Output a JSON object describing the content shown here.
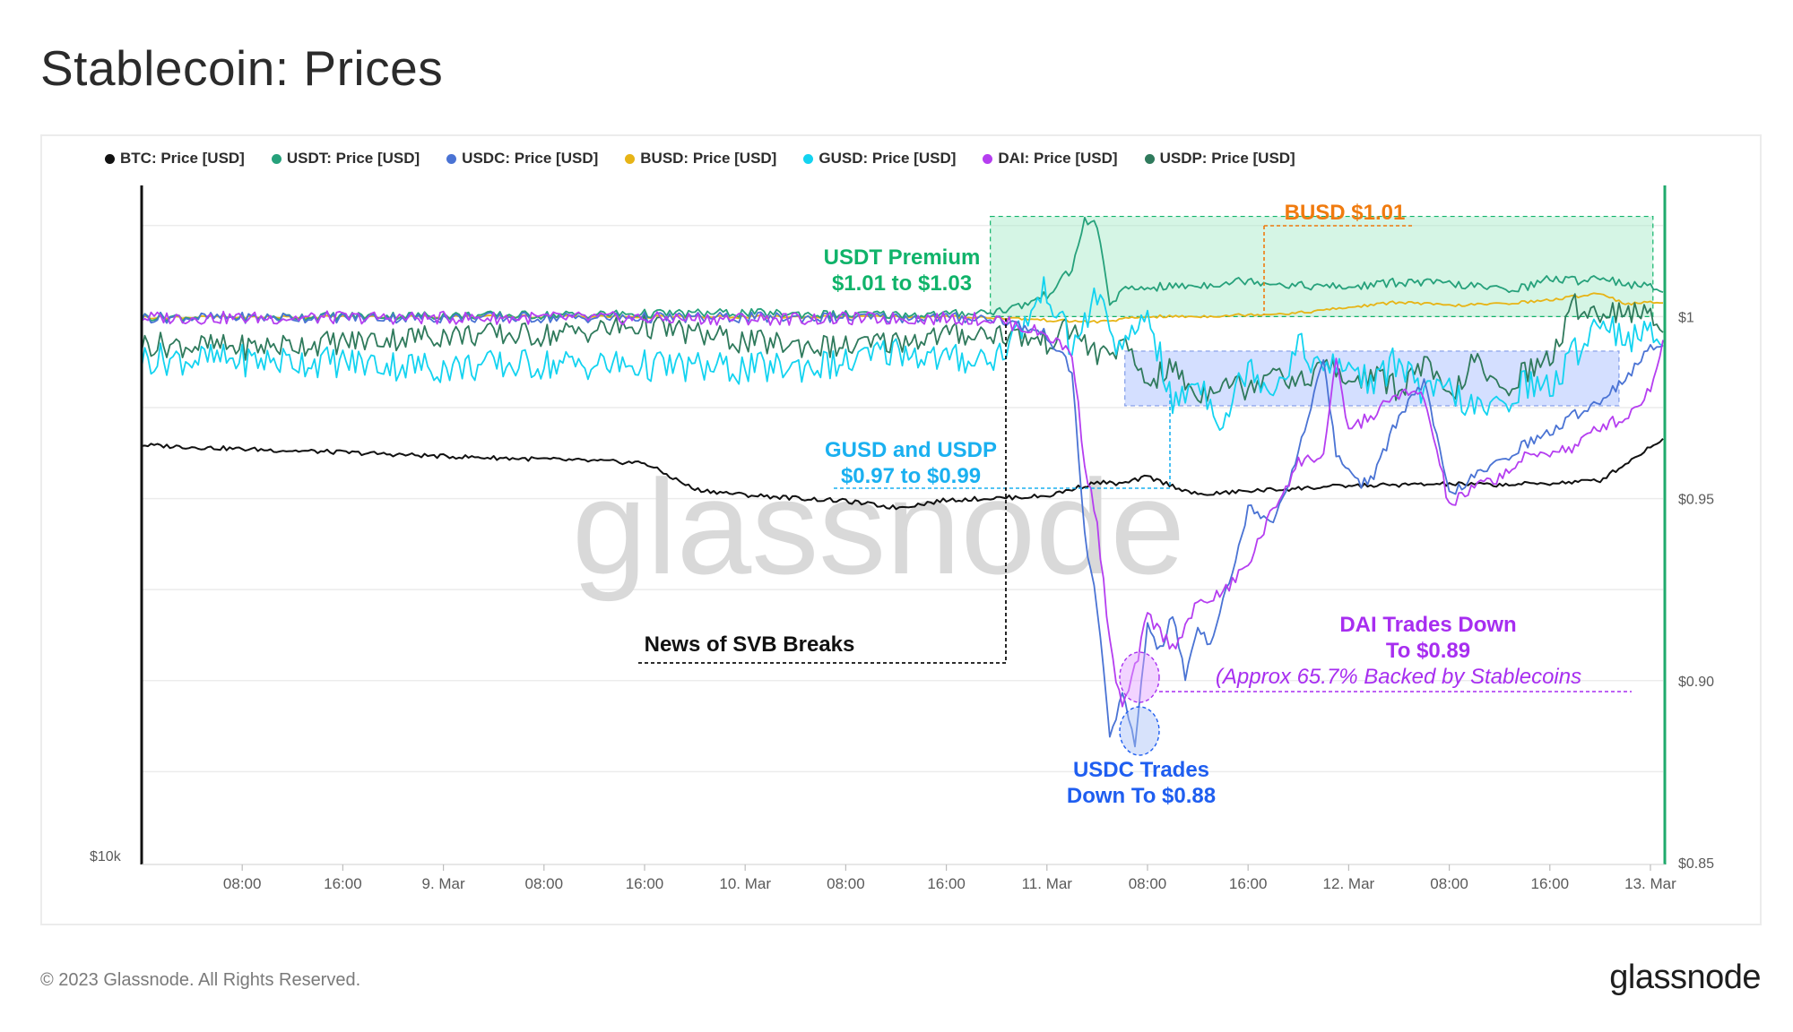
{
  "page": {
    "title": "Stablecoin: Prices",
    "copyright": "© 2023 Glassnode. All Rights Reserved.",
    "logo_text": "glassnode",
    "watermark": "glassnode"
  },
  "colors": {
    "BTC": "#111111",
    "USDT": "#26a17b",
    "USDC": "#4a73d4",
    "BUSD": "#e7b416",
    "GUSD": "#13d3f0",
    "DAI": "#b53ef0",
    "USDP": "#2f7a5c",
    "usdt_zone": "#9be6c1",
    "stable_zone": "#a9c0ff",
    "busd_annot": "#f07b0f",
    "usdt_annot": "#10b36a",
    "gusd_annot": "#1ab0f0",
    "dai_annot": "#a72ef0",
    "usdc_annot": "#1f5ef0",
    "right_axis": "#1faa6c"
  },
  "chart_data": {
    "type": "line",
    "legend": [
      {
        "key": "BTC",
        "label": "BTC: Price [USD]"
      },
      {
        "key": "USDT",
        "label": "USDT: Price [USD]"
      },
      {
        "key": "USDC",
        "label": "USDC: Price [USD]"
      },
      {
        "key": "BUSD",
        "label": "BUSD: Price [USD]"
      },
      {
        "key": "GUSD",
        "label": "GUSD: Price [USD]"
      },
      {
        "key": "DAI",
        "label": "DAI: Price [USD]"
      },
      {
        "key": "USDP",
        "label": "USDP: Price [USD]"
      }
    ],
    "x_ticks": [
      "08:00",
      "16:00",
      "9. Mar",
      "08:00",
      "16:00",
      "10. Mar",
      "08:00",
      "16:00",
      "11. Mar",
      "08:00",
      "16:00",
      "12. Mar",
      "08:00",
      "16:00",
      "13. Mar"
    ],
    "x_tick_hours": [
      8,
      16,
      24,
      32,
      40,
      48,
      56,
      64,
      72,
      80,
      88,
      96,
      104,
      112,
      120
    ],
    "xlim_hours": [
      0,
      121
    ],
    "y_right_ticks": [
      {
        "label": "$1",
        "value": 1.0
      },
      {
        "label": "$0.95",
        "value": 0.95
      },
      {
        "label": "$0.90",
        "value": 0.9
      },
      {
        "label": "$0.85",
        "value": 0.85
      }
    ],
    "y_right_lim": [
      0.85,
      1.0365
    ],
    "y_left_tick": {
      "label": "$10k"
    },
    "series": [
      {
        "name": "BTC: Price [USD]",
        "key": "BTC",
        "x": [
          0,
          8,
          16,
          24,
          32,
          40,
          44,
          48,
          56,
          60,
          64,
          72,
          76,
          78,
          80,
          84,
          88,
          96,
          104,
          108,
          112,
          116,
          118,
          121
        ],
        "y": [
          0.9647,
          0.9636,
          0.9627,
          0.9616,
          0.9608,
          0.9598,
          0.9525,
          0.951,
          0.9493,
          0.9475,
          0.9496,
          0.9507,
          0.9545,
          0.954,
          0.956,
          0.951,
          0.9521,
          0.9535,
          0.954,
          0.9538,
          0.9542,
          0.955,
          0.9595,
          0.9666
        ]
      },
      {
        "name": "USDT: Price [USD]",
        "key": "USDT",
        "x": [
          0,
          8,
          16,
          24,
          32,
          40,
          48,
          56,
          64,
          68,
          70,
          72,
          74,
          75,
          76,
          77,
          78,
          80,
          84,
          88,
          92,
          96,
          100,
          104,
          108,
          110,
          112,
          114,
          116,
          118,
          121
        ],
        "y": [
          1.0,
          0.9998,
          1.0002,
          1.0003,
          1.0004,
          1.0008,
          1.001,
          1.0005,
          1.0006,
          1.0015,
          1.003,
          1.006,
          1.013,
          1.0265,
          1.025,
          1.0035,
          1.007,
          1.008,
          1.0085,
          1.01,
          1.0085,
          1.008,
          1.0095,
          1.009,
          1.0075,
          1.008,
          1.0105,
          1.0098,
          1.011,
          1.009,
          1.0075
        ]
      },
      {
        "name": "USDC: Price [USD]",
        "key": "USDC",
        "x": [
          0,
          8,
          16,
          24,
          32,
          40,
          48,
          56,
          64,
          68,
          72,
          74,
          75,
          76,
          77,
          78,
          79,
          80,
          81,
          82,
          83,
          84,
          85,
          86,
          87,
          88,
          90,
          92,
          93,
          94,
          95,
          96,
          97,
          98,
          100,
          102,
          104,
          106,
          108,
          110,
          112,
          114,
          116,
          118,
          120,
          121
        ],
        "y": [
          0.9997,
          0.9997,
          0.9997,
          0.9997,
          0.9997,
          0.9997,
          0.9997,
          0.9997,
          0.9997,
          0.9995,
          0.995,
          0.985,
          0.94,
          0.92,
          0.885,
          0.896,
          0.882,
          0.916,
          0.908,
          0.918,
          0.901,
          0.915,
          0.91,
          0.923,
          0.932,
          0.948,
          0.944,
          0.962,
          0.976,
          0.988,
          0.962,
          0.958,
          0.954,
          0.956,
          0.973,
          0.982,
          0.951,
          0.956,
          0.96,
          0.965,
          0.968,
          0.973,
          0.977,
          0.983,
          0.991,
          0.993
        ]
      },
      {
        "name": "BUSD: Price [USD]",
        "key": "BUSD",
        "x": [
          0,
          16,
          32,
          48,
          64,
          68,
          70,
          72,
          76,
          80,
          84,
          88,
          92,
          96,
          100,
          104,
          108,
          112,
          116,
          118,
          121
        ],
        "y": [
          0.9998,
          0.9999,
          1.0,
          0.9999,
          0.9999,
          0.9997,
          0.9994,
          0.999,
          0.9985,
          1.0,
          1.0,
          1.0005,
          1.001,
          1.0025,
          1.004,
          1.003,
          1.0035,
          1.0045,
          1.0065,
          1.0035,
          1.004
        ]
      },
      {
        "name": "GUSD: Price [USD]",
        "key": "GUSD",
        "x": [
          0,
          8,
          16,
          24,
          32,
          40,
          48,
          56,
          60,
          64,
          68,
          70,
          72,
          74,
          76,
          78,
          80,
          82,
          84,
          86,
          88,
          90,
          92,
          94,
          96,
          98,
          100,
          102,
          104,
          106,
          108,
          110,
          112,
          114,
          116,
          118,
          121
        ],
        "y": [
          0.9885,
          0.988,
          0.9875,
          0.986,
          0.987,
          0.9865,
          0.9855,
          0.987,
          0.991,
          0.988,
          0.989,
          0.997,
          1.008,
          0.991,
          1.006,
          0.989,
          1.002,
          0.975,
          0.983,
          0.971,
          0.987,
          0.98,
          0.992,
          0.985,
          0.987,
          0.981,
          0.989,
          0.978,
          0.98,
          0.974,
          0.975,
          0.982,
          0.98,
          0.99,
          1.0,
          0.994,
          0.995
        ]
      },
      {
        "name": "DAI: Price [USD]",
        "key": "DAI",
        "x": [
          0,
          8,
          16,
          24,
          32,
          40,
          48,
          56,
          64,
          68,
          72,
          74,
          75,
          76,
          77,
          78,
          79,
          80,
          82,
          84,
          86,
          88,
          90,
          92,
          94,
          95,
          96,
          98,
          100,
          102,
          104,
          106,
          108,
          110,
          112,
          114,
          116,
          118,
          120,
          121
        ],
        "y": [
          0.9997,
          0.9996,
          0.9997,
          0.9996,
          0.9996,
          0.9995,
          0.9994,
          0.9994,
          0.9995,
          0.9992,
          0.995,
          0.99,
          0.96,
          0.943,
          0.91,
          0.892,
          0.903,
          0.918,
          0.909,
          0.921,
          0.924,
          0.932,
          0.947,
          0.96,
          0.962,
          0.987,
          0.969,
          0.973,
          0.979,
          0.978,
          0.948,
          0.953,
          0.956,
          0.961,
          0.963,
          0.964,
          0.97,
          0.972,
          0.98,
          0.994
        ]
      },
      {
        "name": "USDP: Price [USD]",
        "key": "USDP",
        "x": [
          0,
          8,
          16,
          24,
          32,
          40,
          48,
          56,
          64,
          68,
          72,
          74,
          76,
          78,
          80,
          82,
          84,
          86,
          88,
          90,
          92,
          94,
          96,
          98,
          100,
          102,
          104,
          106,
          108,
          110,
          112,
          114,
          116,
          118,
          121
        ],
        "y": [
          0.9925,
          0.9915,
          0.993,
          0.995,
          0.995,
          0.9975,
          0.993,
          0.9915,
          0.995,
          0.9955,
          0.993,
          0.997,
          0.989,
          0.992,
          0.982,
          0.986,
          0.978,
          0.983,
          0.98,
          0.987,
          0.981,
          0.987,
          0.982,
          0.984,
          0.98,
          0.987,
          0.977,
          0.988,
          0.979,
          0.985,
          0.988,
          1.003,
          1.001,
          1.002,
          0.998
        ]
      }
    ],
    "annotations": {
      "busd": {
        "text": "BUSD $1.01"
      },
      "usdt": {
        "line1": "USDT Premium",
        "line2": "$1.01 to $1.03"
      },
      "gusd": {
        "line1": "GUSD and USDP",
        "line2": "$0.97 to $0.99"
      },
      "svb": {
        "text": "News of SVB Breaks"
      },
      "dai": {
        "line1": "DAI Trades Down",
        "line2": "To $0.89",
        "line3": "(Approx 65.7% Backed by Stablecoins"
      },
      "usdc": {
        "line1": "USDC Trades",
        "line2": "Down To $0.88"
      }
    }
  }
}
